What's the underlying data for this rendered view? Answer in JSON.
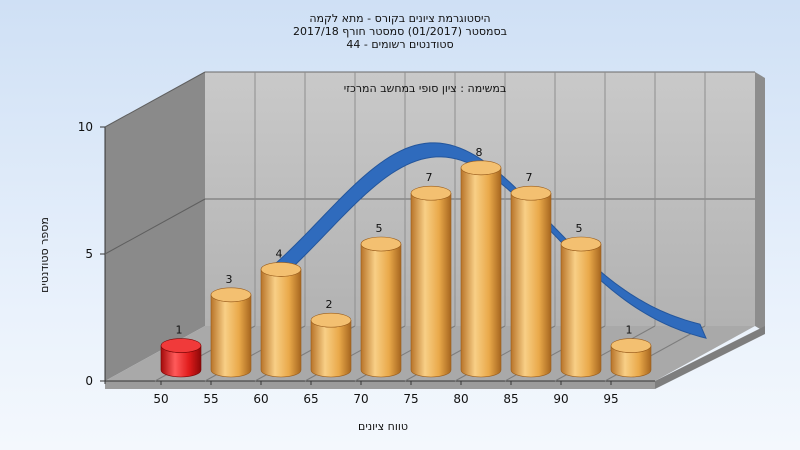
{
  "chart_data": {
    "type": "bar",
    "title_lines": [
      "היסטוגרמת ציונים בקורס - מתא לקמה",
      "בסמסטר  (01/2017)  סמסטר חורף 2017/18",
      "סטודנטים רשומים - 44"
    ],
    "inner_title": "במשימה : ציון סופי במחשב המרכזי",
    "xlabel": "טווח ציונים",
    "ylabel": "מספר סטודנטים",
    "x_ticks": [
      "50",
      "55",
      "60",
      "65",
      "70",
      "75",
      "80",
      "85",
      "90",
      "95"
    ],
    "y_ticks": [
      0,
      5,
      10
    ],
    "ylim": [
      0,
      10
    ],
    "categories": [
      "45-50",
      "50-55",
      "55-60",
      "60-65",
      "65-70",
      "70-75",
      "75-80",
      "80-85",
      "85-90",
      "90-95"
    ],
    "values": [
      1,
      3,
      4,
      2,
      5,
      7,
      8,
      7,
      5,
      1
    ],
    "bar_colors": [
      "#e01c1c",
      "#e9a94a",
      "#e9a94a",
      "#e9a94a",
      "#e9a94a",
      "#e9a94a",
      "#e9a94a",
      "#e9a94a",
      "#e9a94a",
      "#e9a94a"
    ],
    "curve_color": "#2f6bbd",
    "grid": true
  }
}
